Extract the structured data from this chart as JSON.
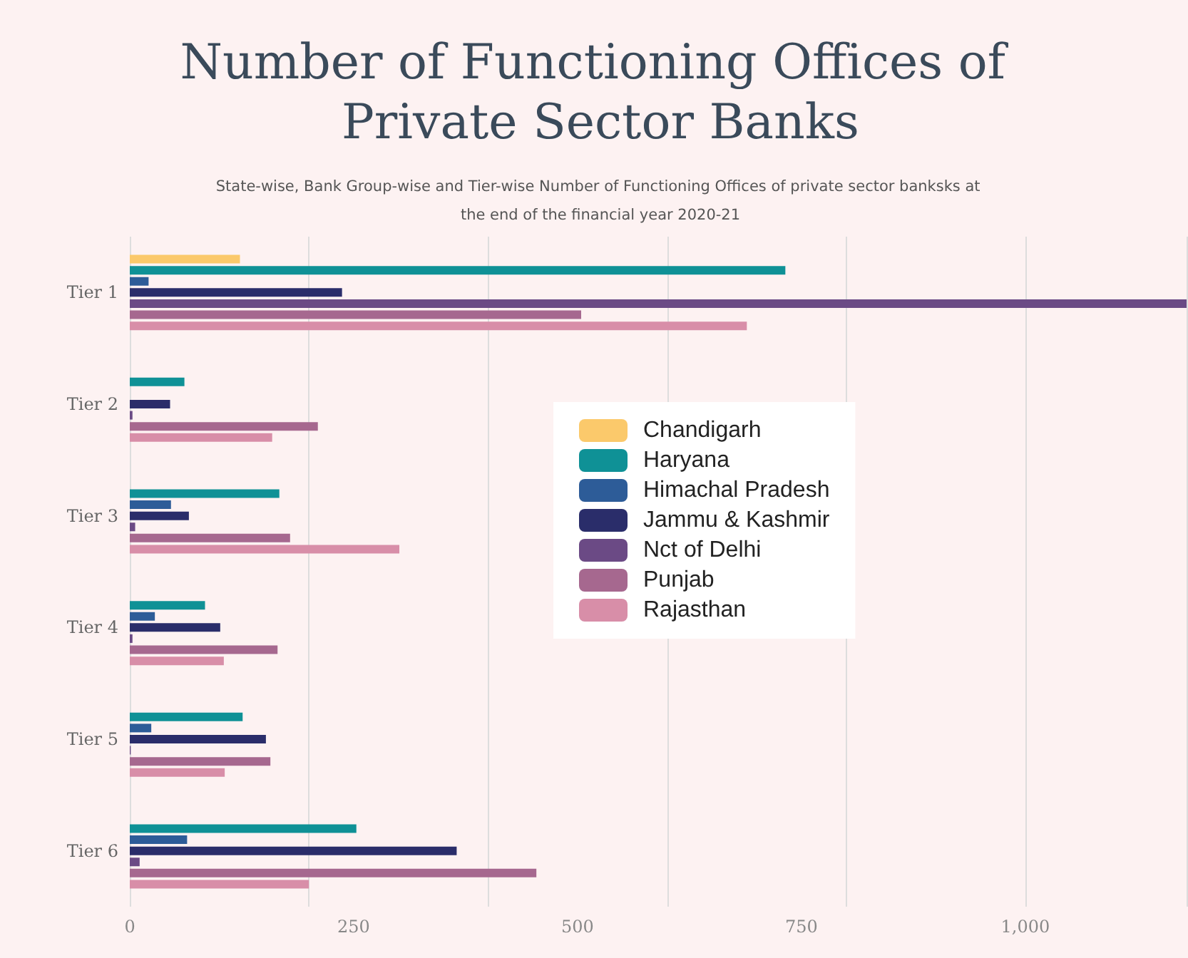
{
  "chart_data": {
    "type": "bar",
    "orientation": "horizontal",
    "title": "Number of Functioning Offices of Private Sector Banks",
    "subtitle": "State-wise, Bank Group-wise and Tier-wise Number of Functioning Offices of private sector banksks at the end of the financial year 2020-21",
    "categories": [
      "Tier 1",
      "Tier 2",
      "Tier 3",
      "Tier 4",
      "Tier 5",
      "Tier 6"
    ],
    "series": [
      {
        "name": "Chandigarh",
        "color": "#fbc96b",
        "values": [
          123,
          null,
          null,
          null,
          null,
          null
        ]
      },
      {
        "name": "Haryana",
        "color": "#0f9196",
        "values": [
          732,
          61,
          167,
          84,
          126,
          253
        ]
      },
      {
        "name": "Himachal Pradesh",
        "color": "#2d5c98",
        "values": [
          21,
          null,
          46,
          28,
          24,
          64
        ]
      },
      {
        "name": "Jammu & Kashmir",
        "color": "#2a2d6a",
        "values": [
          237,
          45,
          66,
          101,
          152,
          365
        ]
      },
      {
        "name": "Nct of Delhi",
        "color": "#6b4a85",
        "values": [
          1180,
          3,
          6,
          3,
          1,
          11
        ]
      },
      {
        "name": "Punjab",
        "color": "#a6688f",
        "values": [
          504,
          210,
          179,
          165,
          157,
          454
        ]
      },
      {
        "name": "Rajasthan",
        "color": "#d88ea8",
        "values": [
          689,
          159,
          301,
          105,
          106,
          200
        ]
      }
    ],
    "xlim": [
      0,
      1180
    ],
    "xticks": [
      0,
      250,
      500,
      750,
      {
        "value": 1000,
        "label": "1,000"
      }
    ],
    "grid": "x",
    "legend": "right"
  }
}
